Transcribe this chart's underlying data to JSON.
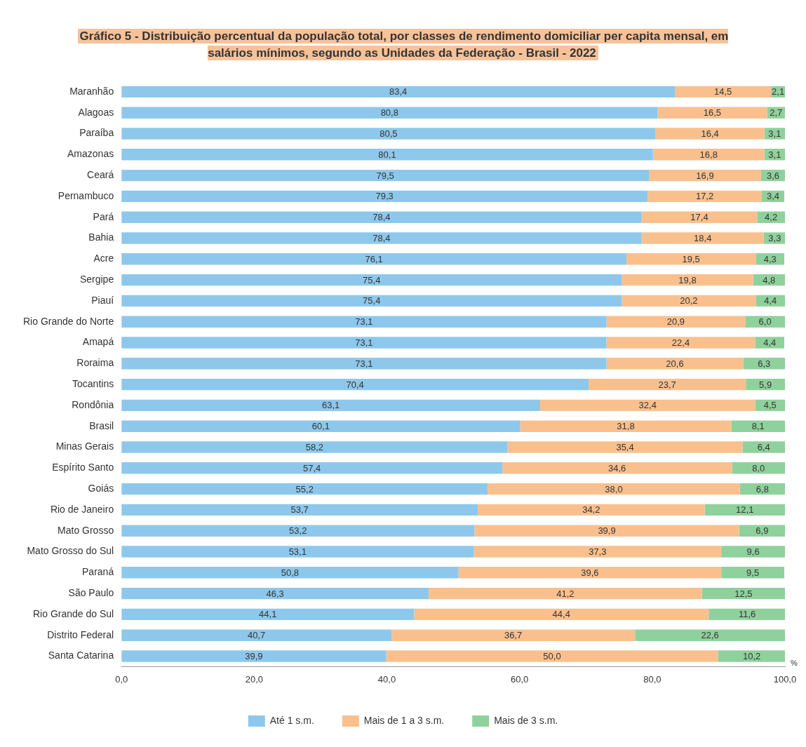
{
  "chart_data": {
    "type": "bar",
    "orientation": "horizontal",
    "stacked": true,
    "title": "Gráfico 5 - Distribuição percentual da população total, por classes de rendimento domiciliar per capita mensal, em salários mínimos, segundo as Unidades da Federação  - Brasil - 2022",
    "categories": [
      "Maranhão",
      "Alagoas",
      "Paraíba",
      "Amazonas",
      "Ceará",
      "Pernambuco",
      "Pará",
      "Bahia",
      "Acre",
      "Sergipe",
      "Piauí",
      "Rio Grande do Norte",
      "Amapá",
      "Roraima",
      "Tocantins",
      "Rondônia",
      "Brasil",
      "Minas Gerais",
      "Espírito Santo",
      "Goiás",
      "Rio de Janeiro",
      "Mato Grosso",
      "Mato Grosso do Sul",
      "Paraná",
      "São Paulo",
      "Rio Grande do Sul",
      "Distrito Federal",
      "Santa Catarina"
    ],
    "series": [
      {
        "name": "Até 1 s.m.",
        "color": "#8dc8ec",
        "values": [
          83.4,
          80.8,
          80.5,
          80.1,
          79.5,
          79.3,
          78.4,
          78.4,
          76.1,
          75.4,
          75.4,
          73.1,
          73.1,
          73.1,
          70.4,
          63.1,
          60.1,
          58.2,
          57.4,
          55.2,
          53.7,
          53.2,
          53.1,
          50.8,
          46.3,
          44.1,
          40.7,
          39.9
        ],
        "value_labels": [
          "83,4",
          "80,8",
          "80,5",
          "80,1",
          "79,5",
          "79,3",
          "78,4",
          "78,4",
          "76,1",
          "75,4",
          "75,4",
          "73,1",
          "73,1",
          "73,1",
          "70,4",
          "63,1",
          "60,1",
          "58,2",
          "57,4",
          "55,2",
          "53,7",
          "53,2",
          "53,1",
          "50,8",
          "46,3",
          "44,1",
          "40,7",
          "39,9"
        ]
      },
      {
        "name": "Mais de 1 a 3 s.m.",
        "color": "#f9c08e",
        "values": [
          14.5,
          16.5,
          16.4,
          16.8,
          16.9,
          17.2,
          17.4,
          18.4,
          19.5,
          19.8,
          20.2,
          20.9,
          22.4,
          20.6,
          23.7,
          32.4,
          31.8,
          35.4,
          34.6,
          38.0,
          34.2,
          39.9,
          37.3,
          39.6,
          41.2,
          44.4,
          36.7,
          50.0
        ],
        "value_labels": [
          "14,5",
          "16,5",
          "16,4",
          "16,8",
          "16,9",
          "17,2",
          "17,4",
          "18,4",
          "19,5",
          "19,8",
          "20,2",
          "20,9",
          "22,4",
          "20,6",
          "23,7",
          "32,4",
          "31,8",
          "35,4",
          "34,6",
          "38,0",
          "34,2",
          "39,9",
          "37,3",
          "39,6",
          "41,2",
          "44,4",
          "36,7",
          "50,0"
        ]
      },
      {
        "name": "Mais de 3 s.m.",
        "color": "#8fd19c",
        "values": [
          2.1,
          2.7,
          3.1,
          3.1,
          3.6,
          3.4,
          4.2,
          3.3,
          4.3,
          4.8,
          4.4,
          6.0,
          4.4,
          6.3,
          5.9,
          4.5,
          8.1,
          6.4,
          8.0,
          6.8,
          12.1,
          6.9,
          9.6,
          9.5,
          12.5,
          11.6,
          22.6,
          10.2
        ],
        "value_labels": [
          "2,1",
          "2,7",
          "3,1",
          "3,1",
          "3,6",
          "3,4",
          "4,2",
          "3,3",
          "4,3",
          "4,8",
          "4,4",
          "6,0",
          "4,4",
          "6,3",
          "5,9",
          "4,5",
          "8,1",
          "6,4",
          "8,0",
          "6,8",
          "12,1",
          "6,9",
          "9,6",
          "9,5",
          "12,5",
          "11,6",
          "22,6",
          "10,2"
        ]
      }
    ],
    "xlim": [
      0,
      100
    ],
    "xticks": [
      {
        "value": 0,
        "label": "0,0"
      },
      {
        "value": 20,
        "label": "20,0"
      },
      {
        "value": 40,
        "label": "40,0"
      },
      {
        "value": 60,
        "label": "60,0"
      },
      {
        "value": 80,
        "label": "80,0"
      },
      {
        "value": 100,
        "label": "100,0"
      }
    ],
    "grid": false,
    "legend": "bottom",
    "annotations": [
      "%"
    ]
  }
}
